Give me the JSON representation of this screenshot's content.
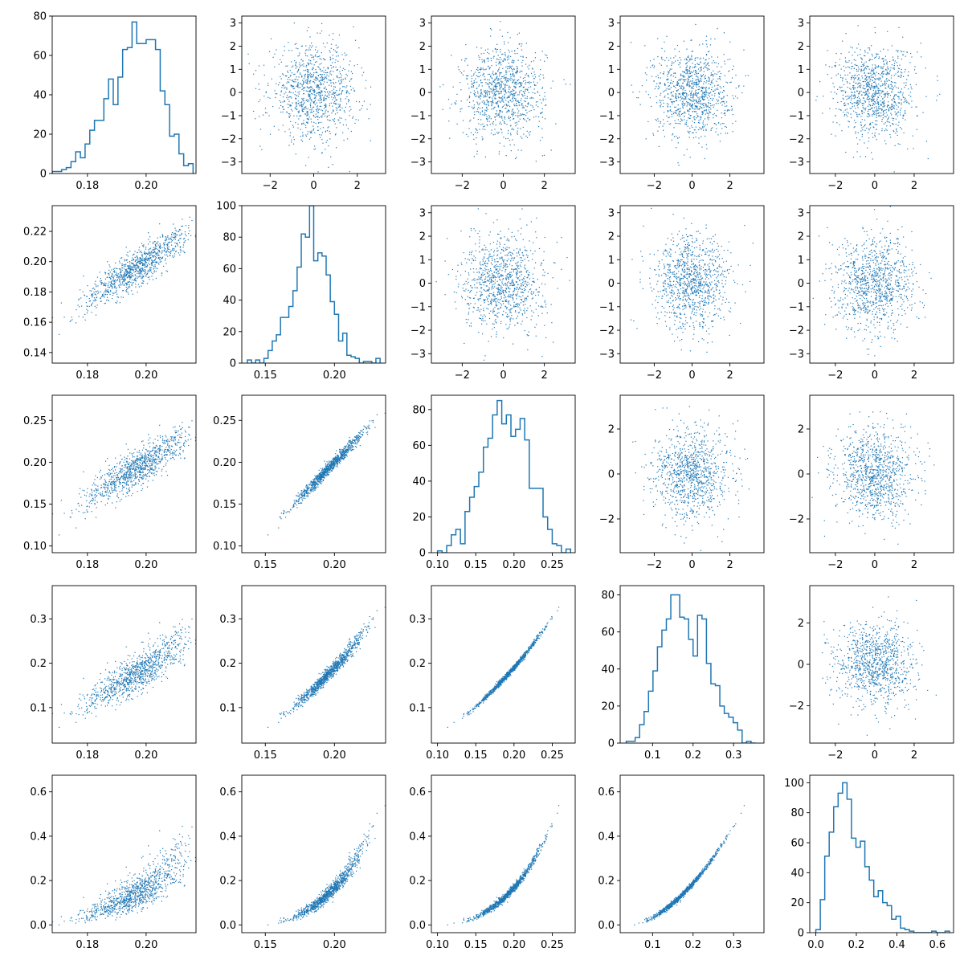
{
  "chart_data": {
    "type": "scatter-matrix",
    "dimensions": 5,
    "marker_color": "#1f77b4",
    "points_per_scatter": 1000,
    "grid": false,
    "panels": [
      {
        "row": 0,
        "col": 0,
        "type": "hist",
        "xlim": [
          0.168,
          0.217
        ],
        "ylim": [
          0,
          80
        ],
        "xticks": [
          0.18,
          0.2
        ],
        "yticks": [
          0,
          20,
          40,
          60,
          80
        ],
        "bins": [
          0.168,
          0.1696,
          0.1712,
          0.1728,
          0.1744,
          0.176,
          0.1776,
          0.1792,
          0.1808,
          0.1824,
          0.184,
          0.1856,
          0.1872,
          0.1888,
          0.1904,
          0.192,
          0.1936,
          0.1952,
          0.1968,
          0.1984,
          0.2,
          0.2016,
          0.2032,
          0.2048,
          0.2064,
          0.208,
          0.2096,
          0.2112,
          0.2128,
          0.2144,
          0.216
        ],
        "counts": [
          1,
          1,
          2,
          3,
          6,
          11,
          8,
          15,
          22,
          27,
          27,
          38,
          48,
          35,
          49,
          63,
          64,
          77,
          66,
          66,
          68,
          68,
          63,
          42,
          35,
          19,
          20,
          10,
          4,
          5
        ]
      },
      {
        "row": 0,
        "col": 1,
        "type": "scatter",
        "dist": "normal",
        "xlim": [
          -3.3,
          3.3
        ],
        "ylim": [
          -3.5,
          3.3
        ],
        "xticks": [
          -2,
          0,
          2
        ],
        "yticks": [
          -3,
          -2,
          -1,
          0,
          1,
          2,
          3
        ]
      },
      {
        "row": 0,
        "col": 2,
        "type": "scatter",
        "dist": "normal",
        "xlim": [
          -3.5,
          3.5
        ],
        "ylim": [
          -3.5,
          3.3
        ],
        "xticks": [
          -2,
          0,
          2
        ],
        "yticks": [
          -3,
          -2,
          -1,
          0,
          1,
          2,
          3
        ]
      },
      {
        "row": 0,
        "col": 3,
        "type": "scatter",
        "dist": "normal",
        "xlim": [
          -3.8,
          3.8
        ],
        "ylim": [
          -3.5,
          3.3
        ],
        "xticks": [
          -2,
          0,
          2
        ],
        "yticks": [
          -3,
          -2,
          -1,
          0,
          1,
          2,
          3
        ]
      },
      {
        "row": 0,
        "col": 4,
        "type": "scatter",
        "dist": "normal",
        "xlim": [
          -3.3,
          4.0
        ],
        "ylim": [
          -3.5,
          3.3
        ],
        "xticks": [
          -2,
          0,
          2
        ],
        "yticks": [
          -3,
          -2,
          -1,
          0,
          1,
          2,
          3
        ]
      },
      {
        "row": 1,
        "col": 0,
        "type": "scatter",
        "relation": {
          "from": 0,
          "to": 1,
          "slope": 1.25,
          "offset": -0.05,
          "noise": 0.006
        },
        "xlim": [
          0.168,
          0.217
        ],
        "ylim": [
          0.133,
          0.237
        ],
        "xticks": [
          0.18,
          0.2
        ],
        "yticks": [
          0.14,
          0.16,
          0.18,
          0.2,
          0.22
        ]
      },
      {
        "row": 1,
        "col": 1,
        "type": "hist",
        "xlim": [
          0.133,
          0.237
        ],
        "ylim": [
          0,
          100
        ],
        "xticks": [
          0.15,
          0.2
        ],
        "yticks": [
          0,
          20,
          40,
          60,
          80,
          100
        ],
        "bins": [
          0.137,
          0.14,
          0.143,
          0.146,
          0.149,
          0.152,
          0.155,
          0.158,
          0.161,
          0.164,
          0.167,
          0.17,
          0.173,
          0.176,
          0.179,
          0.182,
          0.185,
          0.188,
          0.191,
          0.194,
          0.197,
          0.2,
          0.203,
          0.206,
          0.209,
          0.212,
          0.215,
          0.218,
          0.221,
          0.224,
          0.227,
          0.23,
          0.233
        ],
        "counts": [
          2,
          0,
          2,
          0,
          3,
          8,
          14,
          18,
          29,
          29,
          36,
          46,
          61,
          82,
          80,
          100,
          65,
          70,
          68,
          56,
          39,
          31,
          14,
          19,
          5,
          4,
          3,
          0,
          1,
          1,
          0,
          3
        ]
      },
      {
        "row": 1,
        "col": 2,
        "type": "scatter",
        "dist": "normal",
        "xlim": [
          -3.5,
          3.5
        ],
        "ylim": [
          -3.4,
          3.3
        ],
        "xticks": [
          -2,
          0,
          2
        ],
        "yticks": [
          -3,
          -2,
          -1,
          0,
          1,
          2,
          3
        ]
      },
      {
        "row": 1,
        "col": 3,
        "type": "scatter",
        "dist": "normal",
        "xlim": [
          -3.8,
          3.8
        ],
        "ylim": [
          -3.4,
          3.3
        ],
        "xticks": [
          -2,
          0,
          2
        ],
        "yticks": [
          -3,
          -2,
          -1,
          0,
          1,
          2,
          3
        ]
      },
      {
        "row": 1,
        "col": 4,
        "type": "scatter",
        "dist": "normal",
        "xlim": [
          -3.3,
          4.0
        ],
        "ylim": [
          -3.4,
          3.3
        ],
        "xticks": [
          -2,
          0,
          2
        ],
        "yticks": [
          -3,
          -2,
          -1,
          0,
          1,
          2,
          3
        ]
      },
      {
        "row": 2,
        "col": 0,
        "type": "scatter",
        "relation": {
          "from": 0,
          "to": 2,
          "slope": 3.0,
          "offset": -0.4,
          "noise": 0.012
        },
        "xlim": [
          0.168,
          0.217
        ],
        "ylim": [
          0.092,
          0.28
        ],
        "xticks": [
          0.18,
          0.2
        ],
        "yticks": [
          0.1,
          0.15,
          0.2,
          0.25
        ]
      },
      {
        "row": 2,
        "col": 1,
        "type": "scatter",
        "relation": {
          "from": 1,
          "to": 2,
          "slope": 1.7,
          "offset": -0.14,
          "noise": 0.004
        },
        "xlim": [
          0.133,
          0.237
        ],
        "ylim": [
          0.092,
          0.28
        ],
        "xticks": [
          0.15,
          0.2
        ],
        "yticks": [
          0.1,
          0.15,
          0.2,
          0.25
        ]
      },
      {
        "row": 2,
        "col": 2,
        "type": "hist",
        "xlim": [
          0.092,
          0.28
        ],
        "ylim": [
          0,
          88
        ],
        "xticks": [
          0.1,
          0.15,
          0.2,
          0.25
        ],
        "yticks": [
          0,
          20,
          40,
          60,
          80
        ],
        "bins": [
          0.1,
          0.106,
          0.112,
          0.118,
          0.124,
          0.13,
          0.136,
          0.142,
          0.148,
          0.154,
          0.16,
          0.166,
          0.172,
          0.178,
          0.184,
          0.19,
          0.196,
          0.202,
          0.208,
          0.214,
          0.22,
          0.226,
          0.232,
          0.238,
          0.244,
          0.25,
          0.256,
          0.262,
          0.268,
          0.274
        ],
        "counts": [
          1,
          0,
          4,
          10,
          13,
          5,
          23,
          31,
          37,
          45,
          59,
          64,
          77,
          85,
          72,
          77,
          65,
          69,
          75,
          63,
          36,
          36,
          36,
          20,
          13,
          5,
          4,
          0,
          2
        ]
      },
      {
        "row": 2,
        "col": 3,
        "type": "scatter",
        "dist": "normal",
        "xlim": [
          -3.8,
          3.8
        ],
        "ylim": [
          -3.5,
          3.5
        ],
        "xticks": [
          -2,
          0,
          2
        ],
        "yticks": [
          -2,
          0,
          2
        ]
      },
      {
        "row": 2,
        "col": 4,
        "type": "scatter",
        "dist": "normal",
        "xlim": [
          -3.3,
          4.0
        ],
        "ylim": [
          -3.5,
          3.5
        ],
        "xticks": [
          -2,
          0,
          2
        ],
        "yticks": [
          -2,
          0,
          2
        ]
      },
      {
        "row": 3,
        "col": 0,
        "type": "scatter",
        "relation": {
          "from": 0,
          "to": 3,
          "slope": 5.5,
          "offset": -0.9,
          "noise": 0.022
        },
        "xlim": [
          0.168,
          0.217
        ],
        "ylim": [
          0.02,
          0.375
        ],
        "xticks": [
          0.18,
          0.2
        ],
        "yticks": [
          0.1,
          0.2,
          0.3
        ]
      },
      {
        "row": 3,
        "col": 1,
        "type": "scatter",
        "relation": {
          "from": 1,
          "to": 3,
          "slope": 3.1,
          "offset": -0.43,
          "noise": 0.012
        },
        "xlim": [
          0.133,
          0.237
        ],
        "ylim": [
          0.02,
          0.375
        ],
        "xticks": [
          0.15,
          0.2
        ],
        "yticks": [
          0.1,
          0.2,
          0.3
        ]
      },
      {
        "row": 3,
        "col": 2,
        "type": "scatter",
        "relation": {
          "from": 2,
          "to": 3,
          "curve": "square",
          "noise": 0.004
        },
        "xlim": [
          0.092,
          0.28
        ],
        "ylim": [
          0.02,
          0.375
        ],
        "xticks": [
          0.1,
          0.15,
          0.2,
          0.25
        ],
        "yticks": [
          0.1,
          0.2,
          0.3
        ]
      },
      {
        "row": 3,
        "col": 3,
        "type": "hist",
        "xlim": [
          0.02,
          0.375
        ],
        "ylim": [
          0,
          85
        ],
        "xticks": [
          0.1,
          0.2,
          0.3
        ],
        "yticks": [
          0,
          20,
          40,
          60,
          80
        ],
        "bins": [
          0.035,
          0.046,
          0.057,
          0.068,
          0.079,
          0.09,
          0.101,
          0.112,
          0.123,
          0.134,
          0.145,
          0.156,
          0.167,
          0.178,
          0.189,
          0.2,
          0.211,
          0.222,
          0.233,
          0.244,
          0.255,
          0.266,
          0.277,
          0.288,
          0.299,
          0.31,
          0.321,
          0.332,
          0.343,
          0.354
        ],
        "counts": [
          1,
          1,
          3,
          10,
          17,
          28,
          39,
          52,
          61,
          67,
          80,
          80,
          68,
          67,
          56,
          47,
          69,
          67,
          43,
          32,
          31,
          20,
          16,
          14,
          11,
          7,
          0,
          1,
          0
        ]
      },
      {
        "row": 3,
        "col": 4,
        "type": "scatter",
        "dist": "normal",
        "xlim": [
          -3.3,
          4.0
        ],
        "ylim": [
          -3.8,
          3.8
        ],
        "xticks": [
          -2,
          0,
          2
        ],
        "yticks": [
          -2,
          0,
          2
        ]
      },
      {
        "row": 4,
        "col": 0,
        "type": "scatter",
        "relation": {
          "from": 0,
          "to": 4,
          "curve": "exp",
          "noise": 0.045
        },
        "xlim": [
          0.168,
          0.217
        ],
        "ylim": [
          -0.035,
          0.675
        ],
        "xticks": [
          0.18,
          0.2
        ],
        "yticks": [
          0.0,
          0.2,
          0.4,
          0.6
        ]
      },
      {
        "row": 4,
        "col": 1,
        "type": "scatter",
        "relation": {
          "from": 1,
          "to": 4,
          "curve": "exp",
          "noise": 0.03
        },
        "xlim": [
          0.133,
          0.237
        ],
        "ylim": [
          -0.035,
          0.675
        ],
        "xticks": [
          0.15,
          0.2
        ],
        "yticks": [
          0.0,
          0.2,
          0.4,
          0.6
        ]
      },
      {
        "row": 4,
        "col": 2,
        "type": "scatter",
        "relation": {
          "from": 2,
          "to": 4,
          "curve": "exp",
          "noise": 0.012
        },
        "xlim": [
          0.092,
          0.28
        ],
        "ylim": [
          -0.035,
          0.675
        ],
        "xticks": [
          0.1,
          0.15,
          0.2,
          0.25
        ],
        "yticks": [
          0.0,
          0.2,
          0.4,
          0.6
        ]
      },
      {
        "row": 4,
        "col": 3,
        "type": "scatter",
        "relation": {
          "from": 3,
          "to": 4,
          "curve": "square",
          "noise": 0.006
        },
        "xlim": [
          0.02,
          0.375
        ],
        "ylim": [
          -0.035,
          0.675
        ],
        "xticks": [
          0.1,
          0.2,
          0.3
        ],
        "yticks": [
          0.0,
          0.2,
          0.4,
          0.6
        ]
      },
      {
        "row": 4,
        "col": 4,
        "type": "hist",
        "xlim": [
          -0.03,
          0.68
        ],
        "ylim": [
          0,
          105
        ],
        "xticks": [
          0.0,
          0.2,
          0.4,
          0.6
        ],
        "yticks": [
          0,
          20,
          40,
          60,
          80,
          100
        ],
        "bins": [
          0.0,
          0.022,
          0.044,
          0.066,
          0.088,
          0.11,
          0.132,
          0.154,
          0.176,
          0.198,
          0.22,
          0.242,
          0.264,
          0.286,
          0.308,
          0.33,
          0.352,
          0.374,
          0.396,
          0.418,
          0.44,
          0.462,
          0.484,
          0.506,
          0.528,
          0.55,
          0.572,
          0.594,
          0.616,
          0.638,
          0.66
        ],
        "counts": [
          2,
          22,
          51,
          67,
          84,
          93,
          100,
          89,
          63,
          57,
          61,
          44,
          35,
          24,
          28,
          20,
          18,
          9,
          11,
          3,
          2,
          1,
          0,
          0,
          0,
          0,
          1,
          0,
          0,
          1
        ]
      }
    ]
  }
}
